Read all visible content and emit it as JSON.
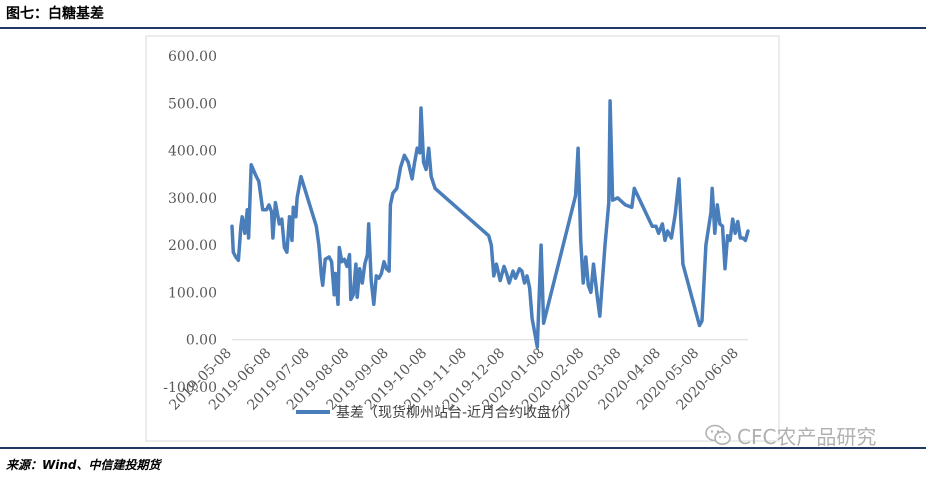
{
  "figure": {
    "title": "图七：白糖基差",
    "source": "来源：Wind、中信建投期货",
    "watermark": "CFC农产品研究"
  },
  "colors": {
    "series": "#4a7ebb",
    "rule": "#1f3864",
    "axis": "#d9d9d9"
  },
  "chart_data": {
    "type": "line",
    "title": "",
    "xlabel": "",
    "ylabel": "",
    "ylim": [
      -100,
      600
    ],
    "grid": false,
    "legend_position": "bottom",
    "y_ticks": [
      "600.00",
      "500.00",
      "400.00",
      "300.00",
      "200.00",
      "100.00",
      "0.00",
      "-100.00"
    ],
    "x_ticks": [
      "2019-05-08",
      "2019-06-08",
      "2019-07-08",
      "2019-08-08",
      "2019-09-08",
      "2019-10-08",
      "2019-11-08",
      "2019-12-08",
      "2020-01-08",
      "2020-02-08",
      "2020-03-08",
      "2020-04-08",
      "2020-05-08",
      "2020-06-08"
    ],
    "series": [
      {
        "name": "基差（现货柳州站台-近月合约收盘价）",
        "points": [
          [
            "2019-05-08",
            240
          ],
          [
            "2019-05-09",
            185
          ],
          [
            "2019-05-11",
            175
          ],
          [
            "2019-05-13",
            168
          ],
          [
            "2019-05-15",
            240
          ],
          [
            "2019-05-16",
            260
          ],
          [
            "2019-05-18",
            225
          ],
          [
            "2019-05-20",
            275
          ],
          [
            "2019-05-21",
            215
          ],
          [
            "2019-05-23",
            370
          ],
          [
            "2019-05-27",
            345
          ],
          [
            "2019-05-29",
            335
          ],
          [
            "2019-06-01",
            275
          ],
          [
            "2019-06-04",
            275
          ],
          [
            "2019-06-06",
            285
          ],
          [
            "2019-06-08",
            270
          ],
          [
            "2019-06-09",
            215
          ],
          [
            "2019-06-11",
            290
          ],
          [
            "2019-06-14",
            245
          ],
          [
            "2019-06-16",
            255
          ],
          [
            "2019-06-18",
            195
          ],
          [
            "2019-06-20",
            185
          ],
          [
            "2019-06-22",
            260
          ],
          [
            "2019-06-24",
            210
          ],
          [
            "2019-06-25",
            280
          ],
          [
            "2019-06-27",
            260
          ],
          [
            "2019-06-28",
            300
          ],
          [
            "2019-07-01",
            345
          ],
          [
            "2019-07-13",
            240
          ],
          [
            "2019-07-15",
            200
          ],
          [
            "2019-07-17",
            135
          ],
          [
            "2019-07-18",
            115
          ],
          [
            "2019-07-20",
            170
          ],
          [
            "2019-07-23",
            175
          ],
          [
            "2019-07-25",
            165
          ],
          [
            "2019-07-27",
            95
          ],
          [
            "2019-07-28",
            140
          ],
          [
            "2019-07-30",
            75
          ],
          [
            "2019-07-31",
            195
          ],
          [
            "2019-08-02",
            165
          ],
          [
            "2019-08-04",
            170
          ],
          [
            "2019-08-06",
            155
          ],
          [
            "2019-08-08",
            180
          ],
          [
            "2019-08-09",
            85
          ],
          [
            "2019-08-11",
            95
          ],
          [
            "2019-08-13",
            160
          ],
          [
            "2019-08-14",
            90
          ],
          [
            "2019-08-16",
            150
          ],
          [
            "2019-08-18",
            120
          ],
          [
            "2019-08-20",
            160
          ],
          [
            "2019-08-22",
            180
          ],
          [
            "2019-08-23",
            245
          ],
          [
            "2019-08-25",
            125
          ],
          [
            "2019-08-27",
            75
          ],
          [
            "2019-08-29",
            135
          ],
          [
            "2019-08-31",
            130
          ],
          [
            "2019-09-02",
            140
          ],
          [
            "2019-09-04",
            165
          ],
          [
            "2019-09-06",
            150
          ],
          [
            "2019-09-08",
            145
          ],
          [
            "2019-09-09",
            285
          ],
          [
            "2019-09-11",
            310
          ],
          [
            "2019-09-14",
            320
          ],
          [
            "2019-09-17",
            365
          ],
          [
            "2019-09-20",
            390
          ],
          [
            "2019-09-23",
            375
          ],
          [
            "2019-09-26",
            340
          ],
          [
            "2019-09-28",
            375
          ],
          [
            "2019-09-30",
            405
          ],
          [
            "2019-10-02",
            395
          ],
          [
            "2019-10-03",
            490
          ],
          [
            "2019-10-05",
            375
          ],
          [
            "2019-10-07",
            360
          ],
          [
            "2019-10-09",
            405
          ],
          [
            "2019-10-11",
            345
          ],
          [
            "2019-10-14",
            320
          ],
          [
            "2019-11-25",
            220
          ],
          [
            "2019-11-27",
            200
          ],
          [
            "2019-11-29",
            135
          ],
          [
            "2019-12-01",
            160
          ],
          [
            "2019-12-04",
            125
          ],
          [
            "2019-12-07",
            155
          ],
          [
            "2019-12-09",
            140
          ],
          [
            "2019-12-11",
            120
          ],
          [
            "2019-12-14",
            145
          ],
          [
            "2019-12-16",
            130
          ],
          [
            "2019-12-19",
            150
          ],
          [
            "2019-12-21",
            145
          ],
          [
            "2019-12-23",
            120
          ],
          [
            "2019-12-25",
            135
          ],
          [
            "2019-12-27",
            110
          ],
          [
            "2019-12-29",
            45
          ],
          [
            "2020-01-02",
            -15
          ],
          [
            "2020-01-05",
            200
          ],
          [
            "2020-01-07",
            35
          ],
          [
            "2020-01-20",
            175
          ],
          [
            "2020-02-01",
            305
          ],
          [
            "2020-02-03",
            405
          ],
          [
            "2020-02-05",
            210
          ],
          [
            "2020-02-07",
            120
          ],
          [
            "2020-02-09",
            175
          ],
          [
            "2020-02-11",
            115
          ],
          [
            "2020-02-13",
            100
          ],
          [
            "2020-02-15",
            160
          ],
          [
            "2020-02-18",
            90
          ],
          [
            "2020-02-20",
            50
          ],
          [
            "2020-02-24",
            200
          ],
          [
            "2020-02-27",
            290
          ],
          [
            "2020-02-28",
            505
          ],
          [
            "2020-03-01",
            295
          ],
          [
            "2020-03-05",
            300
          ],
          [
            "2020-03-11",
            285
          ],
          [
            "2020-03-16",
            280
          ],
          [
            "2020-03-18",
            320
          ],
          [
            "2020-04-01",
            240
          ],
          [
            "2020-04-04",
            240
          ],
          [
            "2020-04-06",
            225
          ],
          [
            "2020-04-09",
            245
          ],
          [
            "2020-04-11",
            210
          ],
          [
            "2020-04-13",
            230
          ],
          [
            "2020-04-16",
            215
          ],
          [
            "2020-04-19",
            265
          ],
          [
            "2020-04-22",
            340
          ],
          [
            "2020-04-25",
            160
          ],
          [
            "2020-05-08",
            30
          ],
          [
            "2020-05-10",
            40
          ],
          [
            "2020-05-13",
            200
          ],
          [
            "2020-05-17",
            270
          ],
          [
            "2020-05-18",
            320
          ],
          [
            "2020-05-20",
            225
          ],
          [
            "2020-05-22",
            285
          ],
          [
            "2020-05-24",
            245
          ],
          [
            "2020-05-26",
            240
          ],
          [
            "2020-05-28",
            150
          ],
          [
            "2020-05-30",
            220
          ],
          [
            "2020-06-01",
            210
          ],
          [
            "2020-06-03",
            255
          ],
          [
            "2020-06-05",
            225
          ],
          [
            "2020-06-07",
            250
          ],
          [
            "2020-06-09",
            215
          ],
          [
            "2020-06-11",
            215
          ],
          [
            "2020-06-13",
            210
          ],
          [
            "2020-06-15",
            230
          ]
        ]
      }
    ]
  }
}
